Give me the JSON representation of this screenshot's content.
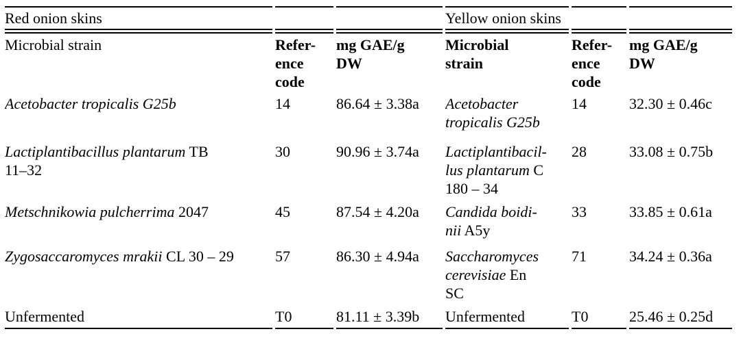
{
  "table": {
    "spanners": [
      {
        "label": "Red onion skins"
      },
      {
        "label": "Yellow onion skins"
      }
    ],
    "headers": [
      {
        "label": "Microbial strain"
      },
      {
        "label": "Refer-\nence\ncode"
      },
      {
        "label": "mg GAE/g\nDW"
      },
      {
        "label": "Microbial\nstrain"
      },
      {
        "label": "Refer-\nence\ncode"
      },
      {
        "label": "mg GAE/g\nDW"
      }
    ],
    "unit_label": "mg GAE/g DW",
    "rows": [
      {
        "red": {
          "strain": [
            {
              "text": "Acetobacter tropicalis G25b",
              "italic": true
            }
          ],
          "code": "14",
          "value": "86.64 ± 3.38a"
        },
        "yellow": {
          "strain": [
            {
              "text": "Acetobacter\ntropicalis G25b",
              "italic": true
            }
          ],
          "code": "14",
          "value": "32.30 ± 0.46c"
        }
      },
      {
        "red": {
          "strain": [
            {
              "text": "Lactiplantibacillus plantarum",
              "italic": true
            },
            {
              "text": " TB\n11–32",
              "italic": false
            }
          ],
          "code": "30",
          "value": "90.96 ± 3.74a"
        },
        "yellow": {
          "strain": [
            {
              "text": "Lactiplantibacil-\nlus plantarum",
              "italic": true
            },
            {
              "text": " C\n180 – 34",
              "italic": false
            }
          ],
          "code": "28",
          "value": "33.08 ± 0.75b"
        }
      },
      {
        "red": {
          "strain": [
            {
              "text": "Metschnikowia pulcherrima",
              "italic": true
            },
            {
              "text": " 2047",
              "italic": false
            }
          ],
          "code": "45",
          "value": "87.54 ± 4.20a"
        },
        "yellow": {
          "strain": [
            {
              "text": "Candida boidi-\nnii",
              "italic": true
            },
            {
              "text": " A5y",
              "italic": false
            }
          ],
          "code": "33",
          "value": "33.85 ± 0.61a"
        }
      },
      {
        "red": {
          "strain": [
            {
              "text": "Zygosaccaromyces mrakii",
              "italic": true
            },
            {
              "text": " CL 30 – 29",
              "italic": false
            }
          ],
          "code": "57",
          "value": "86.30 ± 4.94a"
        },
        "yellow": {
          "strain": [
            {
              "text": "Saccharomyces\ncerevisiae",
              "italic": true
            },
            {
              "text": " En\nSC",
              "italic": false
            }
          ],
          "code": "71",
          "value": "34.24 ± 0.36a"
        }
      },
      {
        "red": {
          "strain": [
            {
              "text": "Unfermented",
              "italic": false
            }
          ],
          "code": "T0",
          "value": "81.11 ± 3.39b"
        },
        "yellow": {
          "strain": [
            {
              "text": "Unfermented",
              "italic": false
            }
          ],
          "code": "T0",
          "value": "25.46 ± 0.25d"
        }
      }
    ]
  }
}
